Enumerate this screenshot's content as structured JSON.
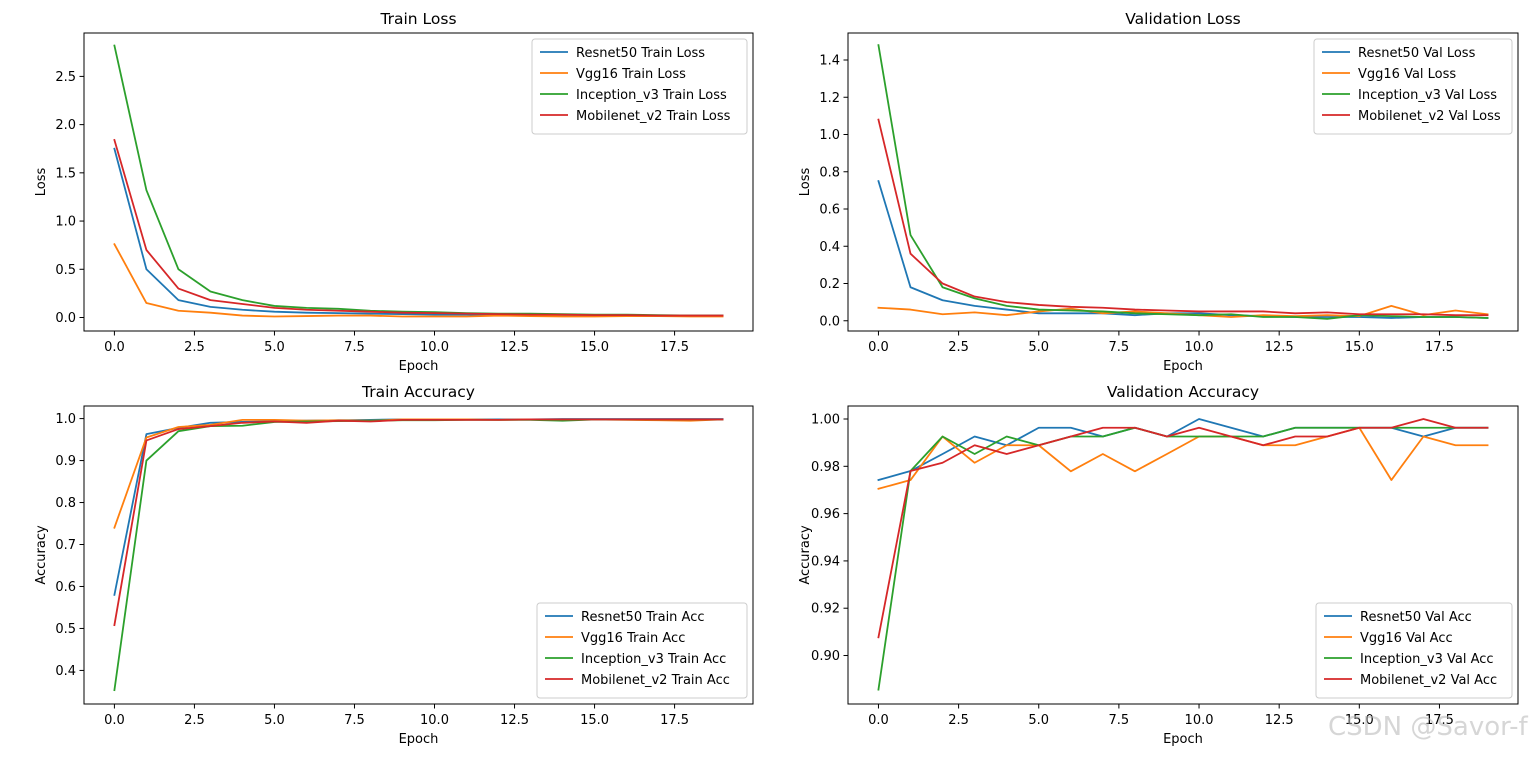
{
  "colors": {
    "resnet": "#1f77b4",
    "vgg": "#ff7f0e",
    "inception": "#2ca02c",
    "mobilenet": "#d62728"
  },
  "watermark": "CSDN @Savor-f",
  "chart_data": [
    {
      "type": "line",
      "title": "Train Loss",
      "xlabel": "Epoch",
      "ylabel": "Loss",
      "xlim": [
        -0.95,
        19.95
      ],
      "ylim": [
        -0.14,
        2.95
      ],
      "xticks": [
        0,
        2.5,
        5,
        7.5,
        10,
        12.5,
        15,
        17.5
      ],
      "xtick_labels": [
        "0.0",
        "2.5",
        "5.0",
        "7.5",
        "10.0",
        "12.5",
        "15.0",
        "17.5"
      ],
      "yticks": [
        0,
        0.5,
        1,
        1.5,
        2,
        2.5
      ],
      "ytick_labels": [
        "0.0",
        "0.5",
        "1.0",
        "1.5",
        "2.0",
        "2.5"
      ],
      "legend_loc": "top-right",
      "x": [
        0,
        1,
        2,
        3,
        4,
        5,
        6,
        7,
        8,
        9,
        10,
        11,
        12,
        13,
        14,
        15,
        16,
        17,
        18,
        19
      ],
      "series": [
        {
          "name": "Resnet50 Train Loss",
          "color_key": "resnet",
          "values": [
            1.75,
            0.5,
            0.18,
            0.11,
            0.08,
            0.06,
            0.05,
            0.045,
            0.04,
            0.035,
            0.03,
            0.03,
            0.025,
            0.025,
            0.02,
            0.02,
            0.02,
            0.02,
            0.02,
            0.02
          ]
        },
        {
          "name": "Vgg16 Train Loss",
          "color_key": "vgg",
          "values": [
            0.76,
            0.15,
            0.07,
            0.05,
            0.02,
            0.01,
            0.015,
            0.02,
            0.02,
            0.01,
            0.01,
            0.01,
            0.02,
            0.015,
            0.01,
            0.01,
            0.015,
            0.015,
            0.01,
            0.01
          ]
        },
        {
          "name": "Inception_v3 Train Loss",
          "color_key": "inception",
          "values": [
            2.82,
            1.32,
            0.5,
            0.27,
            0.18,
            0.12,
            0.1,
            0.09,
            0.07,
            0.06,
            0.055,
            0.045,
            0.04,
            0.04,
            0.035,
            0.03,
            0.03,
            0.025,
            0.02,
            0.02
          ]
        },
        {
          "name": "Mobilenet_v2 Train Loss",
          "color_key": "mobilenet",
          "values": [
            1.84,
            0.7,
            0.3,
            0.18,
            0.14,
            0.1,
            0.08,
            0.07,
            0.06,
            0.05,
            0.045,
            0.04,
            0.035,
            0.03,
            0.03,
            0.025,
            0.025,
            0.02,
            0.02,
            0.02
          ]
        }
      ]
    },
    {
      "type": "line",
      "title": "Validation Loss",
      "xlabel": "Epoch",
      "ylabel": "Loss",
      "xlim": [
        -0.95,
        19.95
      ],
      "ylim": [
        -0.055,
        1.545
      ],
      "xticks": [
        0,
        2.5,
        5,
        7.5,
        10,
        12.5,
        15,
        17.5
      ],
      "xtick_labels": [
        "0.0",
        "2.5",
        "5.0",
        "7.5",
        "10.0",
        "12.5",
        "15.0",
        "17.5"
      ],
      "yticks": [
        0,
        0.2,
        0.4,
        0.6,
        0.8,
        1.0,
        1.2,
        1.4
      ],
      "ytick_labels": [
        "0.0",
        "0.2",
        "0.4",
        "0.6",
        "0.8",
        "1.0",
        "1.2",
        "1.4"
      ],
      "legend_loc": "top-right",
      "x": [
        0,
        1,
        2,
        3,
        4,
        5,
        6,
        7,
        8,
        9,
        10,
        11,
        12,
        13,
        14,
        15,
        16,
        17,
        18,
        19
      ],
      "series": [
        {
          "name": "Resnet50 Val Loss",
          "color_key": "resnet",
          "values": [
            0.75,
            0.18,
            0.11,
            0.08,
            0.06,
            0.04,
            0.04,
            0.04,
            0.03,
            0.04,
            0.04,
            0.03,
            0.025,
            0.02,
            0.02,
            0.02,
            0.015,
            0.02,
            0.02,
            0.015
          ]
        },
        {
          "name": "Vgg16 Val Loss",
          "color_key": "vgg",
          "values": [
            0.07,
            0.06,
            0.035,
            0.045,
            0.03,
            0.05,
            0.065,
            0.04,
            0.05,
            0.04,
            0.03,
            0.02,
            0.03,
            0.025,
            0.03,
            0.025,
            0.08,
            0.03,
            0.055,
            0.035
          ]
        },
        {
          "name": "Inception_v3 Val Loss",
          "color_key": "inception",
          "values": [
            1.48,
            0.46,
            0.18,
            0.12,
            0.08,
            0.06,
            0.055,
            0.05,
            0.04,
            0.035,
            0.03,
            0.035,
            0.02,
            0.02,
            0.01,
            0.03,
            0.025,
            0.02,
            0.02,
            0.015
          ]
        },
        {
          "name": "Mobilenet_v2 Val Loss",
          "color_key": "mobilenet",
          "values": [
            1.08,
            0.36,
            0.2,
            0.13,
            0.1,
            0.085,
            0.075,
            0.07,
            0.06,
            0.055,
            0.05,
            0.05,
            0.05,
            0.04,
            0.045,
            0.035,
            0.035,
            0.035,
            0.03,
            0.03
          ]
        }
      ]
    },
    {
      "type": "line",
      "title": "Train Accuracy",
      "xlabel": "Epoch",
      "ylabel": "Accuracy",
      "xlim": [
        -0.95,
        19.95
      ],
      "ylim": [
        0.32,
        1.03
      ],
      "xticks": [
        0,
        2.5,
        5,
        7.5,
        10,
        12.5,
        15,
        17.5
      ],
      "xtick_labels": [
        "0.0",
        "2.5",
        "5.0",
        "7.5",
        "10.0",
        "12.5",
        "15.0",
        "17.5"
      ],
      "yticks": [
        0.4,
        0.5,
        0.6,
        0.7,
        0.8,
        0.9,
        1.0
      ],
      "ytick_labels": [
        "0.4",
        "0.5",
        "0.6",
        "0.7",
        "0.8",
        "0.9",
        "1.0"
      ],
      "legend_loc": "bottom-right",
      "x": [
        0,
        1,
        2,
        3,
        4,
        5,
        6,
        7,
        8,
        9,
        10,
        11,
        12,
        13,
        14,
        15,
        16,
        17,
        18,
        19
      ],
      "series": [
        {
          "name": "Resnet50 Train Acc",
          "color_key": "resnet",
          "values": [
            0.58,
            0.963,
            0.978,
            0.99,
            0.992,
            0.994,
            0.995,
            0.996,
            0.997,
            0.998,
            0.998,
            0.998,
            0.998,
            0.998,
            0.999,
            0.999,
            0.999,
            0.999,
            0.999,
            0.999
          ]
        },
        {
          "name": "Vgg16 Train Acc",
          "color_key": "vgg",
          "values": [
            0.74,
            0.955,
            0.98,
            0.985,
            0.997,
            0.997,
            0.995,
            0.996,
            0.995,
            0.998,
            0.998,
            0.998,
            0.997,
            0.998,
            0.997,
            0.998,
            0.997,
            0.996,
            0.995,
            0.998
          ]
        },
        {
          "name": "Inception_v3 Train Acc",
          "color_key": "inception",
          "values": [
            0.353,
            0.9,
            0.97,
            0.982,
            0.983,
            0.992,
            0.993,
            0.994,
            0.995,
            0.996,
            0.996,
            0.997,
            0.997,
            0.997,
            0.995,
            0.998,
            0.998,
            0.998,
            0.998,
            0.998
          ]
        },
        {
          "name": "Mobilenet_v2 Train Acc",
          "color_key": "mobilenet",
          "values": [
            0.508,
            0.948,
            0.975,
            0.982,
            0.99,
            0.993,
            0.99,
            0.995,
            0.993,
            0.997,
            0.997,
            0.997,
            0.997,
            0.998,
            0.998,
            0.998,
            0.998,
            0.998,
            0.998,
            0.998
          ]
        }
      ]
    },
    {
      "type": "line",
      "title": "Validation Accuracy",
      "xlabel": "Epoch",
      "ylabel": "Accuracy",
      "xlim": [
        -0.95,
        19.95
      ],
      "ylim": [
        0.8795,
        1.0055
      ],
      "xticks": [
        0,
        2.5,
        5,
        7.5,
        10,
        12.5,
        15,
        17.5
      ],
      "xtick_labels": [
        "0.0",
        "2.5",
        "5.0",
        "7.5",
        "10.0",
        "12.5",
        "15.0",
        "17.5"
      ],
      "yticks": [
        0.9,
        0.92,
        0.94,
        0.96,
        0.98,
        1.0
      ],
      "ytick_labels": [
        "0.90",
        "0.92",
        "0.94",
        "0.96",
        "0.98",
        "1.00"
      ],
      "legend_loc": "bottom-right",
      "x": [
        0,
        1,
        2,
        3,
        4,
        5,
        6,
        7,
        8,
        9,
        10,
        11,
        12,
        13,
        14,
        15,
        16,
        17,
        18,
        19
      ],
      "series": [
        {
          "name": "Resnet50 Val Acc",
          "color_key": "resnet",
          "values": [
            0.9742,
            0.978,
            0.9852,
            0.9926,
            0.9889,
            0.9963,
            0.9963,
            0.9926,
            0.9963,
            0.9926,
            1.0,
            0.9963,
            0.9926,
            0.9963,
            0.9963,
            0.9963,
            0.9963,
            0.9926,
            0.9963,
            0.9963
          ]
        },
        {
          "name": "Vgg16 Val Acc",
          "color_key": "vgg",
          "values": [
            0.9705,
            0.9742,
            0.9926,
            0.9815,
            0.9889,
            0.9889,
            0.9779,
            0.9852,
            0.9779,
            0.9852,
            0.9926,
            0.9926,
            0.9889,
            0.9889,
            0.9926,
            0.9963,
            0.9742,
            0.9926,
            0.9889,
            0.9889
          ]
        },
        {
          "name": "Inception_v3 Val Acc",
          "color_key": "inception",
          "values": [
            0.8856,
            0.978,
            0.9926,
            0.9852,
            0.9926,
            0.9889,
            0.9926,
            0.9926,
            0.9963,
            0.9926,
            0.9926,
            0.9926,
            0.9926,
            0.9963,
            0.9963,
            0.9963,
            0.9963,
            0.9963,
            0.9963,
            0.9963
          ]
        },
        {
          "name": "Mobilenet_v2 Val Acc",
          "color_key": "mobilenet",
          "values": [
            0.9077,
            0.978,
            0.9815,
            0.9889,
            0.9852,
            0.9889,
            0.9926,
            0.9963,
            0.9963,
            0.9926,
            0.9963,
            0.9926,
            0.9889,
            0.9926,
            0.9926,
            0.9963,
            0.9963,
            1.0,
            0.9963,
            0.9963
          ]
        }
      ]
    }
  ]
}
